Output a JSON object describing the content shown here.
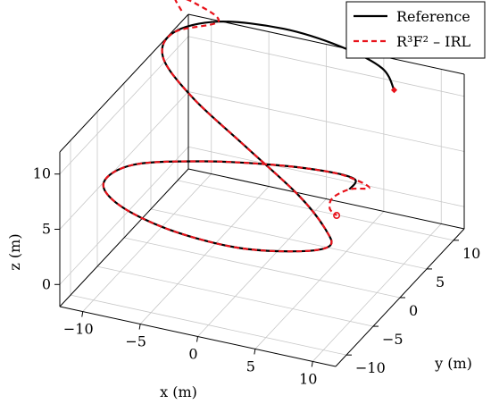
{
  "chart_data": {
    "type": "line3d",
    "title": "",
    "xlabel": "x (m)",
    "ylabel": "y (m)",
    "zlabel": "z (m)",
    "xlim": [
      -12,
      12
    ],
    "ylim": [
      -12,
      12
    ],
    "zlim": [
      -2,
      12
    ],
    "xticks": [
      -10,
      -5,
      0,
      5,
      10
    ],
    "yticks": [
      -10,
      -5,
      0,
      5,
      10
    ],
    "zticks": [
      0,
      5,
      10
    ],
    "grid": true,
    "legend_position": "top-right",
    "series": [
      {
        "name": "Reference",
        "color": "#000000",
        "style": "solid",
        "points": [
          [
            8.0,
            7.5,
            12.0
          ],
          [
            6.0,
            9.5,
            12.5
          ],
          [
            2.0,
            10.5,
            13.0
          ],
          [
            -3.0,
            10.5,
            13.5
          ],
          [
            -8.0,
            9.0,
            13.8
          ],
          [
            -10.5,
            6.0,
            13.8
          ],
          [
            -10.0,
            3.0,
            13.2
          ],
          [
            -6.0,
            0.0,
            12.0
          ],
          [
            0.0,
            -3.0,
            10.5
          ],
          [
            6.0,
            -6.0,
            9.0
          ],
          [
            9.5,
            -8.5,
            8.0
          ],
          [
            10.5,
            -10.0,
            7.5
          ],
          [
            8.0,
            -11.0,
            7.0
          ],
          [
            3.0,
            -11.5,
            6.5
          ],
          [
            -3.0,
            -11.0,
            6.5
          ],
          [
            -8.0,
            -9.5,
            6.8
          ],
          [
            -10.5,
            -7.0,
            7.0
          ],
          [
            -9.5,
            -3.5,
            7.0
          ],
          [
            -5.0,
            0.0,
            6.5
          ],
          [
            0.0,
            2.5,
            6.0
          ],
          [
            4.0,
            4.0,
            5.5
          ],
          [
            6.0,
            4.5,
            5.0
          ],
          [
            5.5,
            4.5,
            4.0
          ]
        ]
      },
      {
        "name": "R³F² – IRL",
        "color": "#e8131b",
        "style": "dashed",
        "points": [
          [
            -10.5,
            7.5,
            15.0
          ],
          [
            -11.5,
            8.5,
            15.5
          ],
          [
            -10.0,
            9.0,
            15.0
          ],
          [
            -8.0,
            9.0,
            13.8
          ],
          [
            -10.5,
            6.0,
            13.8
          ],
          [
            -10.0,
            3.0,
            13.2
          ],
          [
            -6.0,
            0.0,
            12.0
          ],
          [
            0.0,
            -3.0,
            10.5
          ],
          [
            6.0,
            -6.0,
            9.0
          ],
          [
            9.5,
            -8.5,
            8.0
          ],
          [
            10.5,
            -10.0,
            7.5
          ],
          [
            8.0,
            -11.0,
            7.0
          ],
          [
            3.0,
            -11.5,
            6.5
          ],
          [
            -3.0,
            -11.0,
            6.5
          ],
          [
            -8.0,
            -9.5,
            6.8
          ],
          [
            -10.5,
            -7.0,
            7.0
          ],
          [
            -9.5,
            -3.5,
            7.0
          ],
          [
            -5.0,
            0.0,
            6.5
          ],
          [
            0.0,
            2.5,
            6.0
          ],
          [
            4.0,
            4.0,
            5.5
          ],
          [
            6.0,
            4.5,
            5.0
          ],
          [
            7.0,
            5.0,
            4.2
          ],
          [
            5.5,
            4.5,
            4.0
          ],
          [
            4.5,
            3.5,
            3.5
          ],
          [
            4.5,
            3.0,
            2.8
          ],
          [
            5.0,
            3.2,
            2.2
          ]
        ]
      }
    ]
  }
}
